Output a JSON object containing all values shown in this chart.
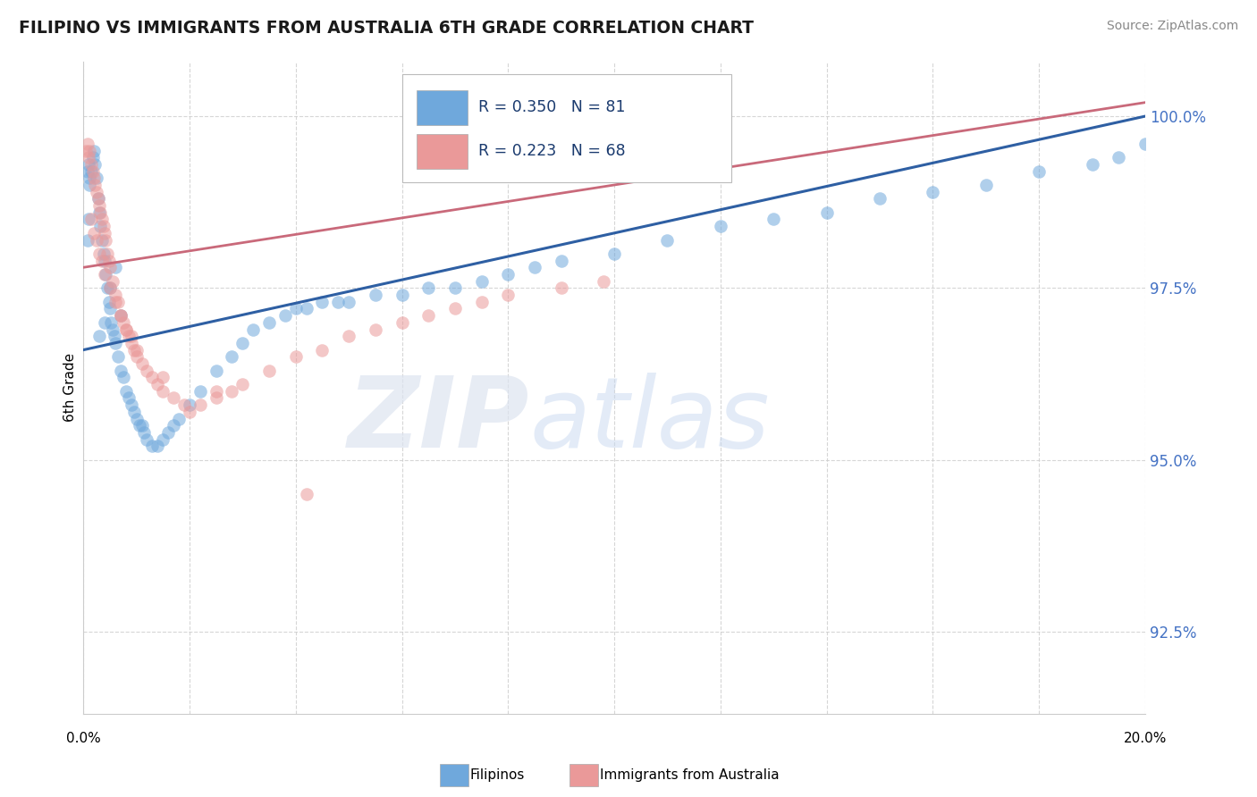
{
  "title": "FILIPINO VS IMMIGRANTS FROM AUSTRALIA 6TH GRADE CORRELATION CHART",
  "source": "Source: ZipAtlas.com",
  "ylabel": "6th Grade",
  "ytick_labels": [
    "92.5%",
    "95.0%",
    "97.5%",
    "100.0%"
  ],
  "ytick_values": [
    92.5,
    95.0,
    97.5,
    100.0
  ],
  "xmin": 0.0,
  "xmax": 20.0,
  "ymin": 91.3,
  "ymax": 100.8,
  "blue_label": "Filipinos",
  "pink_label": "Immigrants from Australia",
  "blue_R": 0.35,
  "blue_N": 81,
  "pink_R": 0.223,
  "pink_N": 68,
  "blue_color": "#6fa8dc",
  "pink_color": "#ea9999",
  "blue_line_color": "#2e5fa3",
  "pink_line_color": "#c9697a",
  "blue_x": [
    0.08,
    0.1,
    0.12,
    0.15,
    0.18,
    0.2,
    0.22,
    0.25,
    0.28,
    0.3,
    0.32,
    0.35,
    0.38,
    0.4,
    0.42,
    0.45,
    0.48,
    0.5,
    0.52,
    0.55,
    0.58,
    0.6,
    0.65,
    0.7,
    0.75,
    0.8,
    0.85,
    0.9,
    0.95,
    1.0,
    1.05,
    1.1,
    1.15,
    1.2,
    1.3,
    1.4,
    1.5,
    1.6,
    1.7,
    1.8,
    2.0,
    2.2,
    2.5,
    2.8,
    3.0,
    3.2,
    3.5,
    3.8,
    4.0,
    4.2,
    4.5,
    4.8,
    5.0,
    5.5,
    6.0,
    6.5,
    7.0,
    7.5,
    8.0,
    8.5,
    9.0,
    10.0,
    11.0,
    12.0,
    13.0,
    14.0,
    15.0,
    16.0,
    17.0,
    18.0,
    19.0,
    19.5,
    20.0,
    0.3,
    0.4,
    0.5,
    0.6,
    0.7,
    0.08,
    0.09,
    0.11
  ],
  "blue_y": [
    98.2,
    98.5,
    99.0,
    99.2,
    99.4,
    99.5,
    99.3,
    99.1,
    98.8,
    98.6,
    98.4,
    98.2,
    98.0,
    97.9,
    97.7,
    97.5,
    97.3,
    97.2,
    97.0,
    96.9,
    96.8,
    96.7,
    96.5,
    96.3,
    96.2,
    96.0,
    95.9,
    95.8,
    95.7,
    95.6,
    95.5,
    95.5,
    95.4,
    95.3,
    95.2,
    95.2,
    95.3,
    95.4,
    95.5,
    95.6,
    95.8,
    96.0,
    96.3,
    96.5,
    96.7,
    96.9,
    97.0,
    97.1,
    97.2,
    97.2,
    97.3,
    97.3,
    97.3,
    97.4,
    97.4,
    97.5,
    97.5,
    97.6,
    97.7,
    97.8,
    97.9,
    98.0,
    98.2,
    98.4,
    98.5,
    98.6,
    98.8,
    98.9,
    99.0,
    99.2,
    99.3,
    99.4,
    99.6,
    96.8,
    97.0,
    97.5,
    97.8,
    97.1,
    99.2,
    99.3,
    99.1
  ],
  "pink_x": [
    0.05,
    0.08,
    0.1,
    0.12,
    0.15,
    0.18,
    0.2,
    0.22,
    0.25,
    0.28,
    0.3,
    0.32,
    0.35,
    0.38,
    0.4,
    0.42,
    0.45,
    0.48,
    0.5,
    0.55,
    0.6,
    0.65,
    0.7,
    0.75,
    0.8,
    0.85,
    0.9,
    0.95,
    1.0,
    1.1,
    1.2,
    1.3,
    1.4,
    1.5,
    1.7,
    1.9,
    2.0,
    2.2,
    2.5,
    2.8,
    3.0,
    3.5,
    4.0,
    4.5,
    5.0,
    5.5,
    6.0,
    6.5,
    7.0,
    7.5,
    8.0,
    9.0,
    9.8,
    0.15,
    0.2,
    0.25,
    0.3,
    0.35,
    0.4,
    0.5,
    0.6,
    0.7,
    0.8,
    0.9,
    1.0,
    1.5,
    2.5,
    4.2
  ],
  "pink_y": [
    99.5,
    99.6,
    99.4,
    99.5,
    99.3,
    99.2,
    99.1,
    99.0,
    98.9,
    98.8,
    98.7,
    98.6,
    98.5,
    98.4,
    98.3,
    98.2,
    98.0,
    97.9,
    97.8,
    97.6,
    97.4,
    97.3,
    97.1,
    97.0,
    96.9,
    96.8,
    96.7,
    96.6,
    96.5,
    96.4,
    96.3,
    96.2,
    96.1,
    96.0,
    95.9,
    95.8,
    95.7,
    95.8,
    95.9,
    96.0,
    96.1,
    96.3,
    96.5,
    96.6,
    96.8,
    96.9,
    97.0,
    97.1,
    97.2,
    97.3,
    97.4,
    97.5,
    97.6,
    98.5,
    98.3,
    98.2,
    98.0,
    97.9,
    97.7,
    97.5,
    97.3,
    97.1,
    96.9,
    96.8,
    96.6,
    96.2,
    96.0,
    94.5
  ]
}
